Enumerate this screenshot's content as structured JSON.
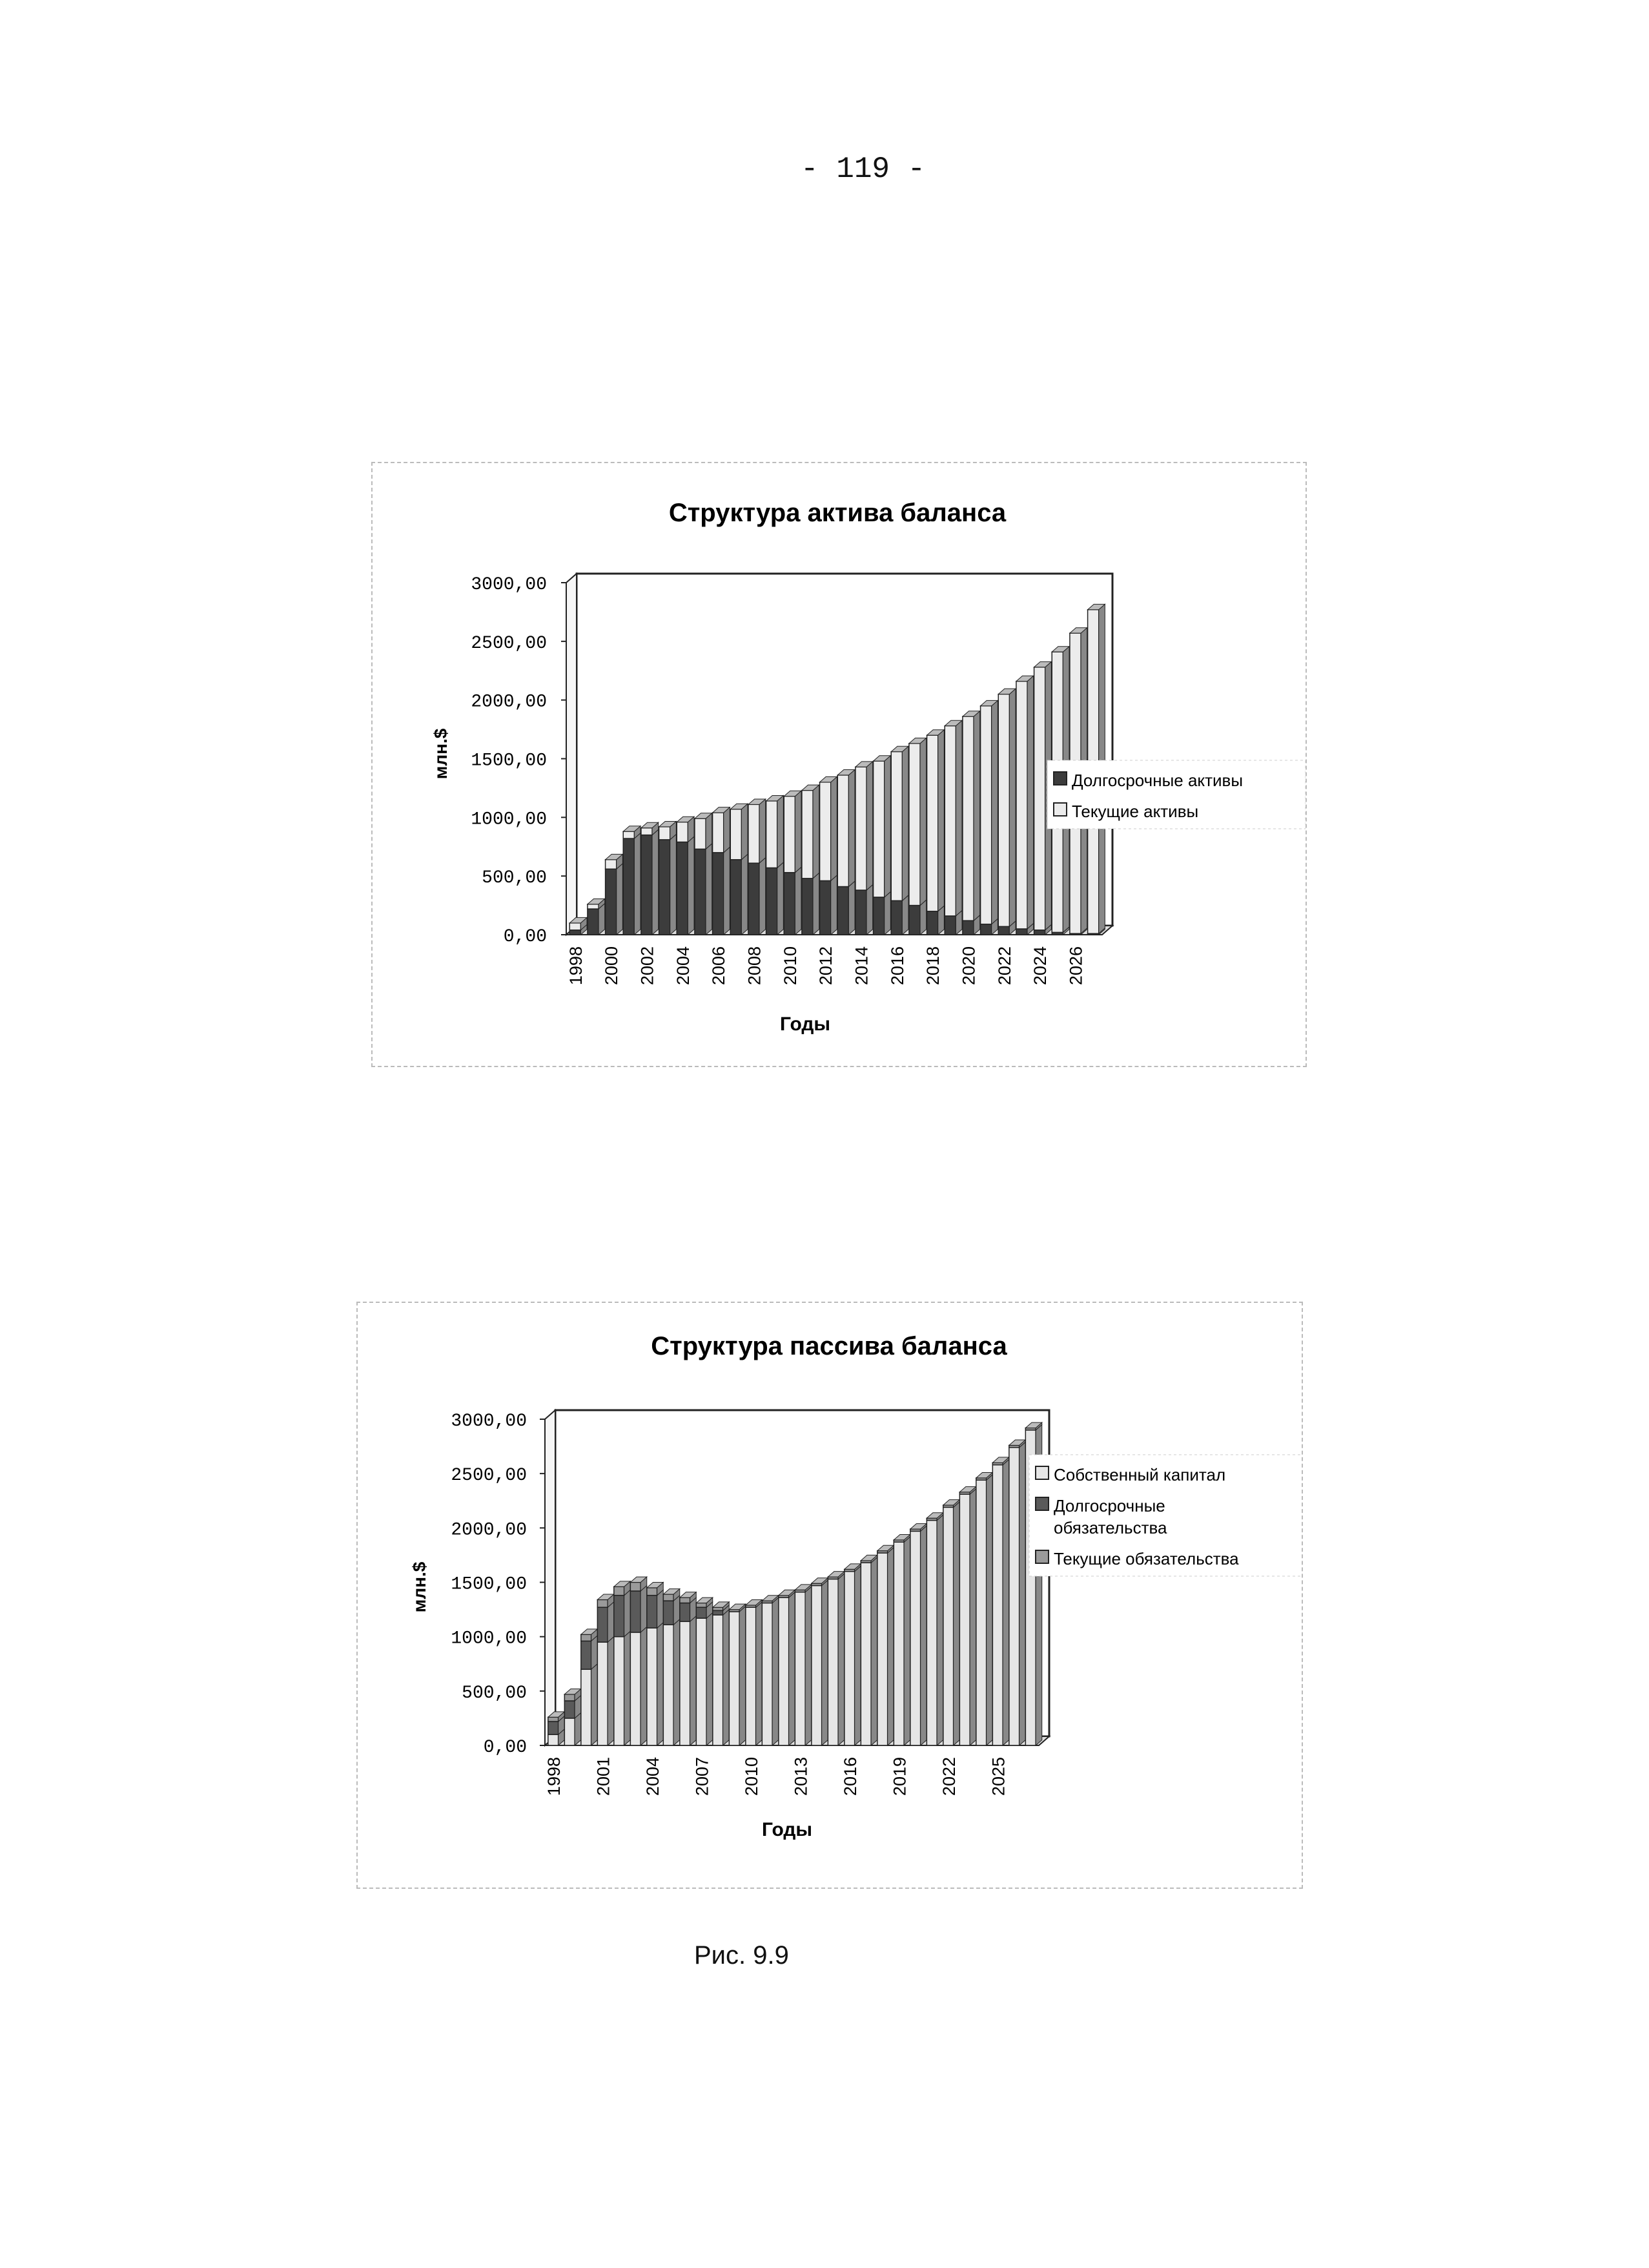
{
  "page_number": "- 119 -",
  "caption": "Рис. 9.9",
  "chart_data": [
    {
      "type": "bar",
      "title": "Структура актива баланса",
      "xlabel": "Годы",
      "ylabel": "млн.$",
      "ylim": [
        0,
        3000
      ],
      "y_ticks": [
        "0,00",
        "500,00",
        "1000,00",
        "1500,00",
        "2000,00",
        "2500,00",
        "3000,00"
      ],
      "x_tick_labels": [
        "1998",
        "2000",
        "2002",
        "2004",
        "2006",
        "2008",
        "2010",
        "2012",
        "2014",
        "2016",
        "2018",
        "2020",
        "2022",
        "2024",
        "2026"
      ],
      "categories": [
        "1998",
        "1999",
        "2000",
        "2001",
        "2002",
        "2003",
        "2004",
        "2005",
        "2006",
        "2007",
        "2008",
        "2009",
        "2010",
        "2011",
        "2012",
        "2013",
        "2014",
        "2015",
        "2016",
        "2017",
        "2018",
        "2019",
        "2020",
        "2021",
        "2022",
        "2023",
        "2024",
        "2025",
        "2026",
        "2027"
      ],
      "legend": "right",
      "series": [
        {
          "name": "Текущие активы",
          "values": [
            60,
            40,
            80,
            60,
            60,
            110,
            170,
            260,
            340,
            430,
            500,
            570,
            650,
            750,
            840,
            950,
            1050,
            1160,
            1270,
            1380,
            1500,
            1620,
            1740,
            1860,
            1980,
            2110,
            2240,
            2390,
            2560,
            2760
          ]
        },
        {
          "name": "Долгосрочные активы",
          "values": [
            40,
            220,
            560,
            820,
            850,
            810,
            790,
            730,
            700,
            640,
            610,
            570,
            530,
            480,
            460,
            410,
            380,
            320,
            290,
            250,
            200,
            160,
            120,
            90,
            70,
            50,
            40,
            20,
            10,
            10
          ]
        }
      ]
    },
    {
      "type": "bar",
      "title": "Структура пассива баланса",
      "xlabel": "Годы",
      "ylabel": "млн.$",
      "ylim": [
        0,
        3000
      ],
      "y_ticks": [
        "0,00",
        "500,00",
        "1000,00",
        "1500,00",
        "2000,00",
        "2500,00",
        "3000,00"
      ],
      "x_tick_labels": [
        "1998",
        "2001",
        "2004",
        "2007",
        "2010",
        "2013",
        "2016",
        "2019",
        "2022",
        "2025"
      ],
      "categories": [
        "1998",
        "1999",
        "2000",
        "2001",
        "2002",
        "2003",
        "2004",
        "2005",
        "2006",
        "2007",
        "2008",
        "2009",
        "2010",
        "2011",
        "2012",
        "2013",
        "2014",
        "2015",
        "2016",
        "2017",
        "2018",
        "2019",
        "2020",
        "2021",
        "2022",
        "2023",
        "2024",
        "2025",
        "2026",
        "2027"
      ],
      "legend": "right",
      "series": [
        {
          "name": "Собственный капитал",
          "values": [
            100,
            250,
            700,
            950,
            1000,
            1040,
            1080,
            1110,
            1140,
            1170,
            1200,
            1230,
            1270,
            1310,
            1360,
            1410,
            1470,
            1530,
            1600,
            1680,
            1770,
            1870,
            1970,
            2070,
            2190,
            2310,
            2440,
            2580,
            2740,
            2900
          ]
        },
        {
          "name": "Долгосрочные обязательства",
          "values": [
            120,
            160,
            260,
            320,
            380,
            380,
            300,
            220,
            170,
            100,
            40,
            0,
            0,
            0,
            0,
            0,
            0,
            0,
            0,
            0,
            0,
            0,
            0,
            0,
            0,
            0,
            0,
            0,
            0,
            0
          ]
        },
        {
          "name": "Текущие обязательства",
          "values": [
            40,
            60,
            60,
            70,
            80,
            80,
            70,
            60,
            50,
            40,
            30,
            20,
            20,
            20,
            20,
            20,
            20,
            20,
            20,
            20,
            20,
            20,
            20,
            20,
            20,
            20,
            20,
            20,
            20,
            20
          ]
        }
      ],
      "legend_lines": [
        [
          "Собственный капитал"
        ],
        [
          "Долгосрочные",
          "обязательства"
        ],
        [
          "Текущие обязательства"
        ]
      ]
    }
  ],
  "colors": {
    "current_assets": "#ececec",
    "longterm_assets": "#3c3c3c",
    "equity": "#e6e6e6",
    "longterm_liab": "#5a5a5a",
    "current_liab": "#9a9a9a",
    "axis": "#222222"
  }
}
